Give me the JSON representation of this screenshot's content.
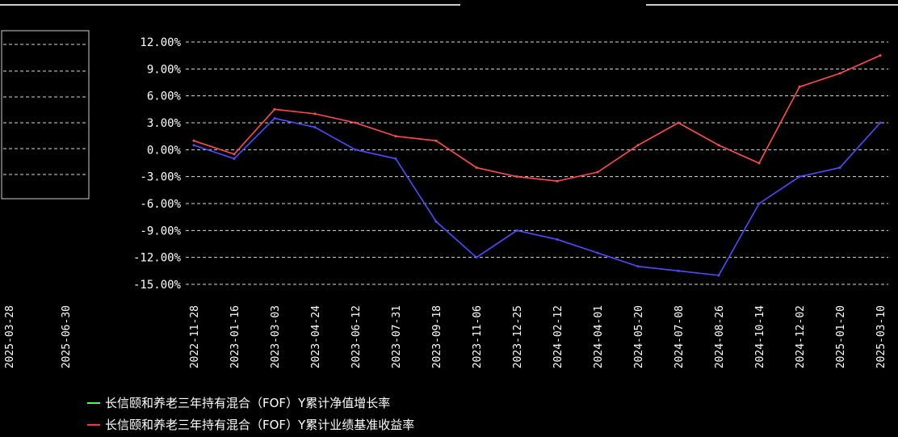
{
  "chart_data": {
    "type": "line",
    "title": "",
    "xlabel": "",
    "ylabel": "",
    "y_tick_labels": [
      "12.00%",
      "9.00%",
      "6.00%",
      "3.00%",
      "0.00%",
      "-3.00%",
      "-6.00%",
      "-9.00%",
      "-12.00%",
      "-15.00%"
    ],
    "y_ticks": [
      12,
      9,
      6,
      3,
      0,
      -3,
      -6,
      -9,
      -12,
      -15
    ],
    "ylim": [
      -15,
      12
    ],
    "x_tick_labels": [
      "2022-11-28",
      "2023-01-16",
      "2023-03-03",
      "2023-04-24",
      "2023-06-12",
      "2023-07-31",
      "2023-09-18",
      "2023-11-06",
      "2023-12-25",
      "2024-02-12",
      "2024-04-01",
      "2024-05-20",
      "2024-07-08",
      "2024-08-26",
      "2024-10-14",
      "2024-12-02",
      "2025-01-20",
      "2025-03-10"
    ],
    "left_panel_x_tick_labels": [
      "2025-03-28",
      "2025-06-30"
    ],
    "grid": true,
    "legend_placement": "bottom",
    "series": [
      {
        "name": "长信颐和养老三年持有混合（FOF）Y累计净值增长率",
        "color": "#ff4d4d",
        "x": [
          "2022-11-28",
          "2023-01-16",
          "2023-03-03",
          "2023-04-24",
          "2023-06-12",
          "2023-07-31",
          "2023-09-18",
          "2023-11-06",
          "2023-12-25",
          "2024-02-12",
          "2024-04-01",
          "2024-05-20",
          "2024-07-08",
          "2024-08-26",
          "2024-10-14",
          "2024-12-02",
          "2025-01-20",
          "2025-03-10"
        ],
        "values": [
          1.0,
          -0.5,
          4.5,
          4.0,
          3.0,
          1.5,
          1.0,
          -2.0,
          -3.0,
          -3.5,
          -2.5,
          0.5,
          3.0,
          0.5,
          -1.5,
          7.0,
          8.5,
          10.5
        ]
      },
      {
        "name": "长信颐和养老三年持有混合（FOF）Y累计业绩基准收益率",
        "color": "#4d4dff",
        "x": [
          "2022-11-28",
          "2023-01-16",
          "2023-03-03",
          "2023-04-24",
          "2023-06-12",
          "2023-07-31",
          "2023-09-18",
          "2023-11-06",
          "2023-12-25",
          "2024-02-12",
          "2024-04-01",
          "2024-05-20",
          "2024-07-08",
          "2024-08-26",
          "2024-10-14",
          "2024-12-02",
          "2025-01-20",
          "2025-03-10"
        ],
        "values": [
          0.5,
          -1.0,
          3.5,
          2.5,
          0.0,
          -1.0,
          -8.0,
          -12.0,
          -9.0,
          -10.0,
          -11.5,
          -13.0,
          -13.5,
          -14.0,
          -6.0,
          -3.0,
          -2.0,
          3.0
        ]
      }
    ]
  },
  "legend": {
    "item_1_color": "#4cff4c",
    "item_2_color": "#ff3333"
  },
  "colors": {
    "background": "#000000",
    "grid": "#d9d9d9",
    "text": "#ffffff"
  }
}
